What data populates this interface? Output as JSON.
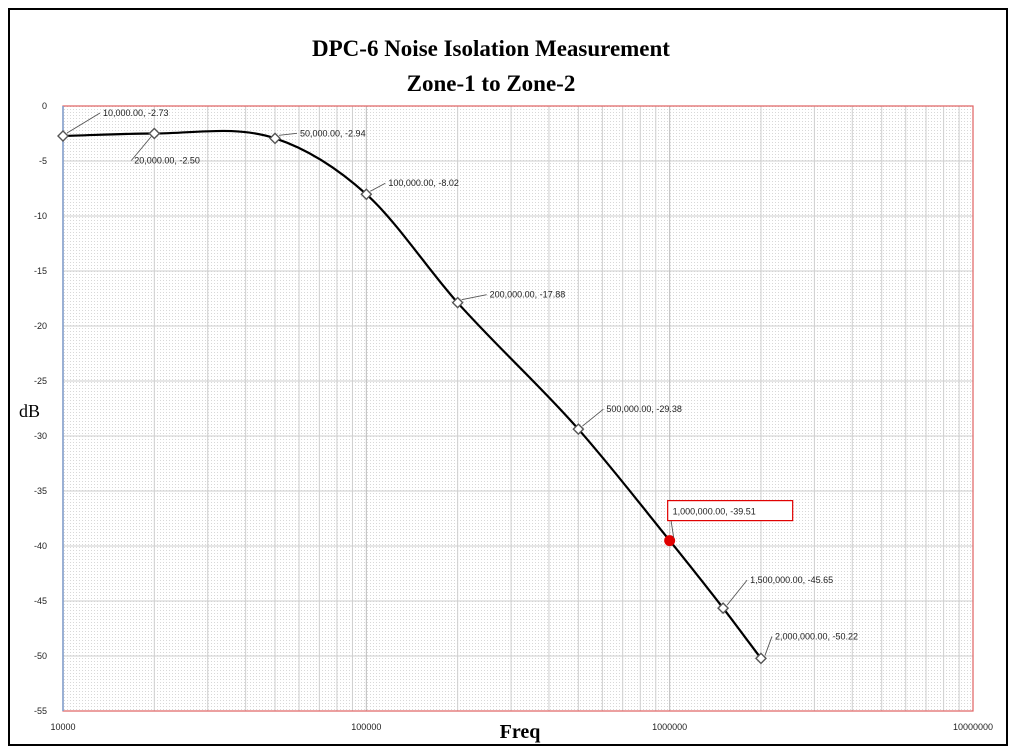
{
  "chart_data": {
    "type": "line",
    "title": "DPC-6 Noise Isolation Measurement",
    "subtitle": "Zone-1 to Zone-2",
    "xlabel": "Freq",
    "ylabel": "dB",
    "x_scale": "log",
    "xlim": [
      10000,
      10000000
    ],
    "ylim": [
      -55,
      0
    ],
    "x_ticks": [
      {
        "value": 10000,
        "label": "10000"
      },
      {
        "value": 100000,
        "label": "100000"
      },
      {
        "value": 1000000,
        "label": "1000000"
      },
      {
        "value": 10000000,
        "label": "10000000"
      }
    ],
    "y_ticks": [
      {
        "value": 0,
        "label": "0"
      },
      {
        "value": -5,
        "label": "-5"
      },
      {
        "value": -10,
        "label": "-10"
      },
      {
        "value": -15,
        "label": "-15"
      },
      {
        "value": -20,
        "label": "-20"
      },
      {
        "value": -25,
        "label": "-25"
      },
      {
        "value": -30,
        "label": "-30"
      },
      {
        "value": -35,
        "label": "-35"
      },
      {
        "value": -40,
        "label": "-40"
      },
      {
        "value": -45,
        "label": "-45"
      },
      {
        "value": -50,
        "label": "-50"
      },
      {
        "value": -55,
        "label": "-55"
      }
    ],
    "grid": true,
    "legend": "none",
    "series": [
      {
        "color": "#000000",
        "marker": "diamond",
        "points": [
          {
            "x": 10000,
            "y": -2.73,
            "label": "10,000.00, -2.73"
          },
          {
            "x": 20000,
            "y": -2.5,
            "label": "20,000.00, -2.50"
          },
          {
            "x": 50000,
            "y": -2.94,
            "label": "50,000.00, -2.94"
          },
          {
            "x": 100000,
            "y": -8.02,
            "label": "100,000.00, -8.02"
          },
          {
            "x": 200000,
            "y": -17.88,
            "label": "200,000.00, -17.88"
          },
          {
            "x": 500000,
            "y": -29.38,
            "label": "500,000.00, -29.38"
          },
          {
            "x": 1000000,
            "y": -39.51,
            "label": "1,000,000.00, -39.51",
            "highlight": true
          },
          {
            "x": 1500000,
            "y": -45.65,
            "label": "1,500,000.00, -45.65"
          },
          {
            "x": 2000000,
            "y": -50.22,
            "label": "2,000,000.00, -50.22"
          }
        ]
      }
    ],
    "colors": {
      "plot_border": "#e06060",
      "highlight": "#e00000",
      "grid": "#cfcfcf"
    }
  }
}
